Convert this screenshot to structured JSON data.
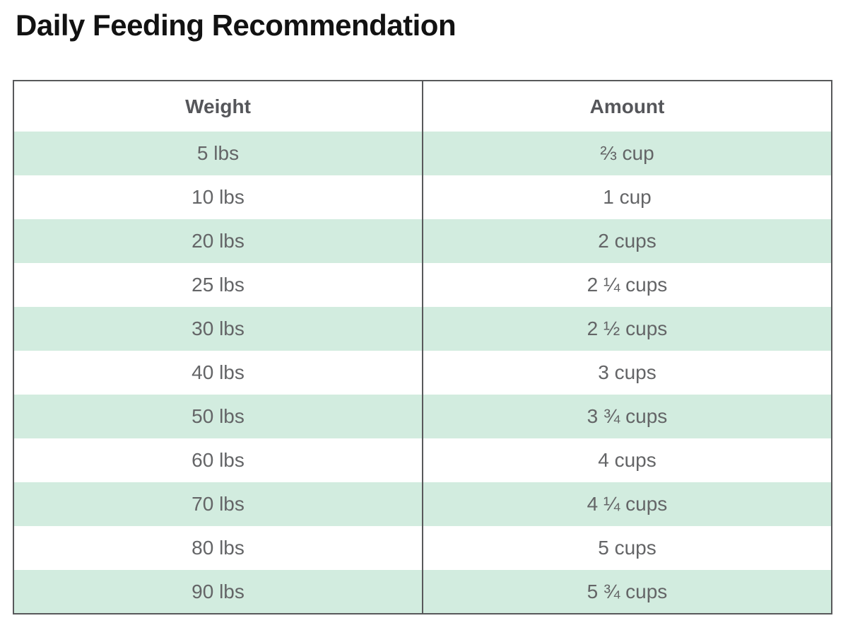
{
  "page": {
    "title": "Daily Feeding Recommendation"
  },
  "table": {
    "columns": {
      "weight": "Weight",
      "amount": "Amount"
    },
    "rows": [
      {
        "weight": "5 lbs",
        "amount": "⅔ cup"
      },
      {
        "weight": "10 lbs",
        "amount": "1 cup"
      },
      {
        "weight": "20 lbs",
        "amount": "2 cups"
      },
      {
        "weight": "25 lbs",
        "amount": "2 ¼ cups"
      },
      {
        "weight": "30 lbs",
        "amount": "2 ½ cups"
      },
      {
        "weight": "40 lbs",
        "amount": "3 cups"
      },
      {
        "weight": "50 lbs",
        "amount": "3 ¾ cups"
      },
      {
        "weight": "60 lbs",
        "amount": "4 cups"
      },
      {
        "weight": "70 lbs",
        "amount": "4 ¼ cups"
      },
      {
        "weight": "80 lbs",
        "amount": "5 cups"
      },
      {
        "weight": "90 lbs",
        "amount": "5 ¾ cups"
      }
    ]
  },
  "colors": {
    "row_stripe": "#d2ecdf",
    "table_border": "#58595b",
    "body_text": "#646567",
    "header_text": "#55565a",
    "title_text": "#121212"
  },
  "chart_data": {
    "type": "table",
    "title": "Daily Feeding Recommendation",
    "columns": [
      "Weight",
      "Amount"
    ],
    "rows": [
      [
        "5 lbs",
        "⅔ cup"
      ],
      [
        "10 lbs",
        "1 cup"
      ],
      [
        "20 lbs",
        "2 cups"
      ],
      [
        "25 lbs",
        "2 ¼ cups"
      ],
      [
        "30 lbs",
        "2 ½ cups"
      ],
      [
        "40 lbs",
        "3 cups"
      ],
      [
        "50 lbs",
        "3 ¾ cups"
      ],
      [
        "60 lbs",
        "4 cups"
      ],
      [
        "70 lbs",
        "4 ¼ cups"
      ],
      [
        "80 lbs",
        "5 cups"
      ],
      [
        "90 lbs",
        "5 ¾ cups"
      ]
    ],
    "layout": {
      "striped_rows": "odd",
      "stripe_color": "#d2ecdf",
      "grid": "outer-border-and-column-divider"
    }
  }
}
